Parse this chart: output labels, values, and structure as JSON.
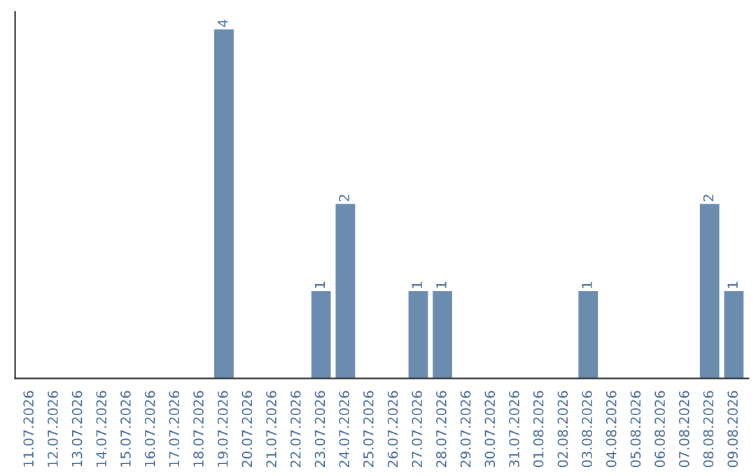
{
  "chart_data": {
    "type": "bar",
    "categories": [
      "11.07.2026",
      "12.07.2026",
      "13.07.2026",
      "14.07.2026",
      "15.07.2026",
      "16.07.2026",
      "17.07.2026",
      "18.07.2026",
      "19.07.2026",
      "20.07.2026",
      "21.07.2026",
      "22.07.2026",
      "23.07.2026",
      "24.07.2026",
      "25.07.2026",
      "26.07.2026",
      "27.07.2026",
      "28.07.2026",
      "29.07.2026",
      "30.07.2026",
      "31.07.2026",
      "01.08.2026",
      "02.08.2026",
      "03.08.2026",
      "04.08.2026",
      "05.08.2026",
      "06.08.2026",
      "07.08.2026",
      "08.08.2026",
      "09.08.2026"
    ],
    "values": [
      0,
      0,
      0,
      0,
      0,
      0,
      0,
      0,
      4,
      0,
      0,
      0,
      1,
      2,
      0,
      0,
      1,
      1,
      0,
      0,
      0,
      0,
      0,
      1,
      0,
      0,
      0,
      0,
      2,
      1
    ],
    "value_labels": [
      null,
      null,
      null,
      null,
      null,
      null,
      null,
      null,
      "4",
      null,
      null,
      null,
      "1",
      "2",
      null,
      null,
      "1",
      "1",
      null,
      null,
      null,
      null,
      null,
      "1",
      null,
      null,
      null,
      null,
      "2",
      "1"
    ],
    "color": "#6b8cae",
    "tick_labels": "x",
    "grid": false
  }
}
